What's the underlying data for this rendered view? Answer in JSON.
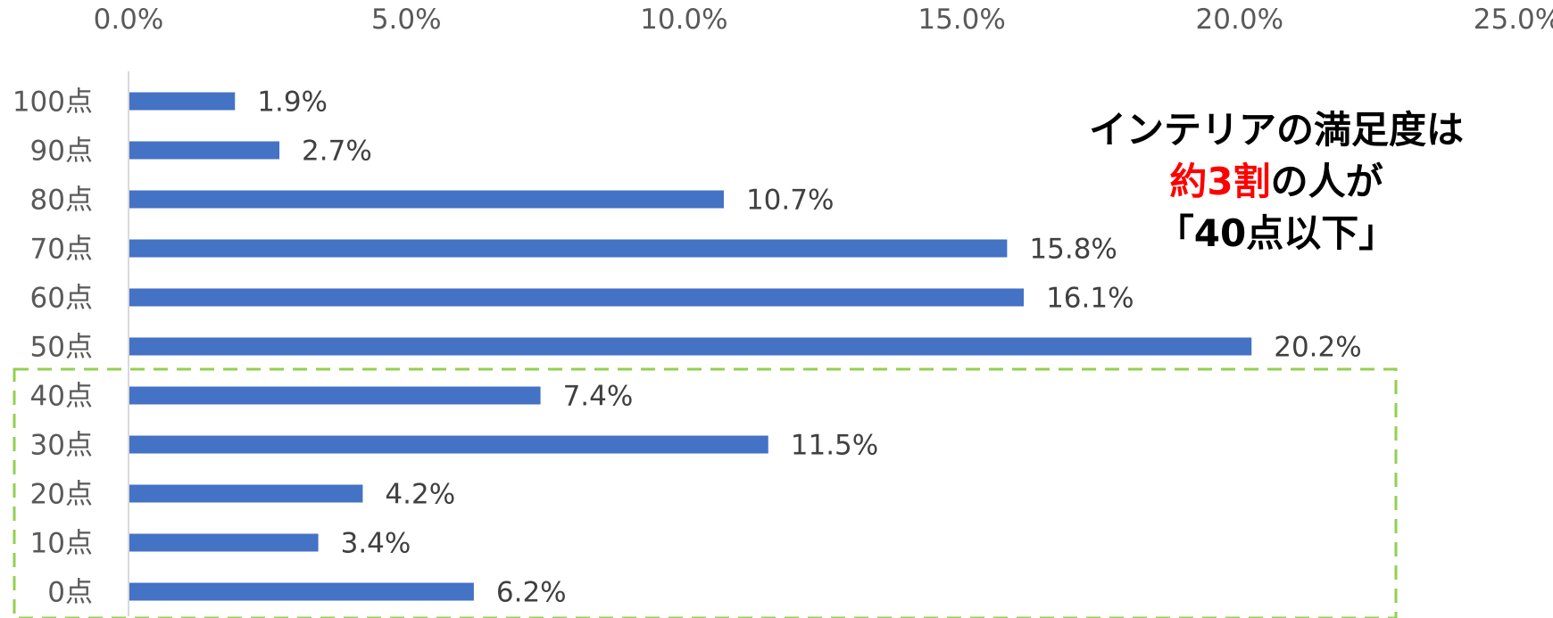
{
  "chart_data": {
    "type": "bar",
    "orientation": "horizontal",
    "categories": [
      "100点",
      "90点",
      "80点",
      "70点",
      "60点",
      "50点",
      "40点",
      "30点",
      "20点",
      "10点",
      "0点"
    ],
    "values": [
      1.9,
      2.7,
      10.7,
      15.8,
      16.1,
      20.2,
      7.4,
      11.5,
      4.2,
      3.4,
      6.2
    ],
    "value_labels": [
      "1.9%",
      "2.7%",
      "10.7%",
      "15.8%",
      "16.1%",
      "20.2%",
      "7.4%",
      "11.5%",
      "4.2%",
      "3.4%",
      "6.2%"
    ],
    "x_ticks": [
      "0.0%",
      "5.0%",
      "10.0%",
      "15.0%",
      "20.0%",
      "25.0%"
    ],
    "xlim": [
      0,
      25
    ],
    "x_axis_position": "top",
    "grid": false,
    "bar_color": "#4472C4",
    "highlight": {
      "categories": [
        "40点",
        "30点",
        "20点",
        "10点",
        "0点"
      ],
      "style": "dashed-box",
      "color": "#92D050"
    },
    "annotation": {
      "line1": "インテリアの満足度は",
      "line2_highlight": "約3割",
      "line2_rest": "の人が",
      "line3": "「40点以下」",
      "text_color": "#000000",
      "highlight_color": "#FF0000"
    }
  }
}
